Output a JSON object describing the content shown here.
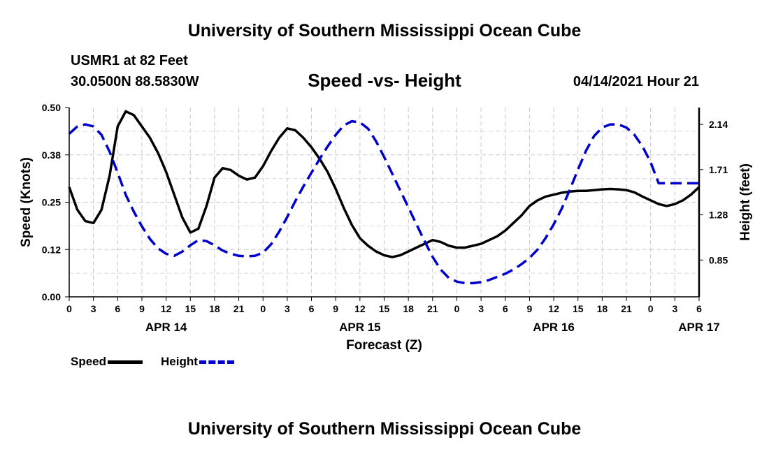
{
  "header": {
    "title": "University of Southern Mississippi Ocean Cube",
    "station": "USMR1 at 82 Feet",
    "coords": "30.0500N  88.5830W",
    "subtitle": "Speed -vs- Height",
    "datestamp": "04/14/2021 Hour 21"
  },
  "footer": {
    "title": "University of Southern Mississippi Ocean Cube"
  },
  "legend": {
    "speed_label": "Speed",
    "height_label": "Height"
  },
  "chart_data": {
    "type": "line",
    "title": "Speed -vs- Height",
    "xlabel": "Forecast (Z)",
    "ylabel": "Speed (Knots)",
    "ylabel_right": "Height (feet)",
    "x_unit": "hours from 04/14/2021 00Z",
    "xlim": [
      0,
      78
    ],
    "ylim": [
      0,
      0.5
    ],
    "ylim_right": [
      0.5,
      2.3
    ],
    "grid": true,
    "legend_position": "bottom-left",
    "x_ticks": [
      {
        "hour": 0,
        "label": "0"
      },
      {
        "hour": 3,
        "label": "3"
      },
      {
        "hour": 6,
        "label": "6"
      },
      {
        "hour": 9,
        "label": "9"
      },
      {
        "hour": 12,
        "label": "12"
      },
      {
        "hour": 15,
        "label": "15"
      },
      {
        "hour": 18,
        "label": "18"
      },
      {
        "hour": 21,
        "label": "21"
      },
      {
        "hour": 24,
        "label": "0"
      },
      {
        "hour": 27,
        "label": "3"
      },
      {
        "hour": 30,
        "label": "6"
      },
      {
        "hour": 33,
        "label": "9"
      },
      {
        "hour": 36,
        "label": "12"
      },
      {
        "hour": 39,
        "label": "15"
      },
      {
        "hour": 42,
        "label": "18"
      },
      {
        "hour": 45,
        "label": "21"
      },
      {
        "hour": 48,
        "label": "0"
      },
      {
        "hour": 51,
        "label": "3"
      },
      {
        "hour": 54,
        "label": "6"
      },
      {
        "hour": 57,
        "label": "9"
      },
      {
        "hour": 60,
        "label": "12"
      },
      {
        "hour": 63,
        "label": "15"
      },
      {
        "hour": 66,
        "label": "18"
      },
      {
        "hour": 69,
        "label": "21"
      },
      {
        "hour": 72,
        "label": "0"
      },
      {
        "hour": 75,
        "label": "3"
      },
      {
        "hour": 78,
        "label": "6"
      }
    ],
    "date_labels": [
      {
        "hour": 12,
        "label": "APR 14"
      },
      {
        "hour": 36,
        "label": "APR 15"
      },
      {
        "hour": 60,
        "label": "APR 16"
      },
      {
        "hour": 78,
        "label": "APR 17"
      }
    ],
    "y_ticks": [
      {
        "value": 0.0,
        "label": "0.00"
      },
      {
        "value": 0.125,
        "label": "0.12"
      },
      {
        "value": 0.25,
        "label": "0.25"
      },
      {
        "value": 0.375,
        "label": "0.38"
      },
      {
        "value": 0.5,
        "label": "0.50"
      }
    ],
    "y_ticks_right": [
      {
        "value": 0.85,
        "label": "0.85"
      },
      {
        "value": 1.28,
        "label": "1.28"
      },
      {
        "value": 1.71,
        "label": "1.71"
      },
      {
        "value": 2.14,
        "label": "2.14"
      }
    ],
    "series": [
      {
        "name": "Speed",
        "axis": "left",
        "color": "#000000",
        "dash": "solid",
        "x": [
          0,
          1,
          2,
          3,
          4,
          5,
          6,
          7,
          8,
          9,
          10,
          11,
          12,
          13,
          14,
          15,
          16,
          17,
          18,
          19,
          20,
          21,
          22,
          23,
          24,
          25,
          26,
          27,
          28,
          29,
          30,
          31,
          32,
          33,
          34,
          35,
          36,
          37,
          38,
          39,
          40,
          41,
          42,
          43,
          44,
          45,
          46,
          47,
          48,
          49,
          50,
          51,
          52,
          53,
          54,
          55,
          56,
          57,
          58,
          59,
          60,
          61,
          62,
          63,
          64,
          65,
          66,
          67,
          68,
          69,
          70,
          71,
          72,
          73,
          74,
          75,
          76,
          77,
          78
        ],
        "values": [
          0.29,
          0.23,
          0.2,
          0.195,
          0.23,
          0.32,
          0.45,
          0.49,
          0.48,
          0.45,
          0.42,
          0.38,
          0.33,
          0.27,
          0.21,
          0.17,
          0.18,
          0.24,
          0.315,
          0.34,
          0.335,
          0.32,
          0.31,
          0.315,
          0.345,
          0.385,
          0.42,
          0.445,
          0.44,
          0.42,
          0.395,
          0.365,
          0.33,
          0.285,
          0.235,
          0.19,
          0.155,
          0.135,
          0.12,
          0.11,
          0.105,
          0.11,
          0.12,
          0.13,
          0.14,
          0.15,
          0.145,
          0.135,
          0.13,
          0.13,
          0.135,
          0.14,
          0.15,
          0.16,
          0.175,
          0.195,
          0.215,
          0.24,
          0.255,
          0.265,
          0.27,
          0.275,
          0.278,
          0.28,
          0.28,
          0.282,
          0.284,
          0.285,
          0.284,
          0.282,
          0.276,
          0.265,
          0.255,
          0.245,
          0.24,
          0.245,
          0.255,
          0.27,
          0.29
        ]
      },
      {
        "name": "Height",
        "axis": "right",
        "color": "#0000cc",
        "dash": "dashed",
        "x": [
          0,
          1,
          2,
          3,
          4,
          5,
          6,
          7,
          8,
          9,
          10,
          11,
          12,
          13,
          14,
          15,
          16,
          17,
          18,
          19,
          20,
          21,
          22,
          23,
          24,
          25,
          26,
          27,
          28,
          29,
          30,
          31,
          32,
          33,
          34,
          35,
          36,
          37,
          38,
          39,
          40,
          41,
          42,
          43,
          44,
          45,
          46,
          47,
          48,
          49,
          50,
          51,
          52,
          53,
          54,
          55,
          56,
          57,
          58,
          59,
          60,
          61,
          62,
          63,
          64,
          65,
          66,
          67,
          68,
          69,
          70,
          71,
          72,
          73,
          74,
          75,
          76,
          77,
          78
        ],
        "values": [
          2.05,
          2.12,
          2.14,
          2.12,
          2.04,
          1.88,
          1.68,
          1.47,
          1.31,
          1.17,
          1.05,
          0.96,
          0.91,
          0.89,
          0.93,
          0.99,
          1.04,
          1.03,
          0.99,
          0.94,
          0.91,
          0.89,
          0.885,
          0.89,
          0.92,
          1.0,
          1.12,
          1.26,
          1.41,
          1.55,
          1.68,
          1.81,
          1.93,
          2.04,
          2.13,
          2.17,
          2.16,
          2.1,
          1.98,
          1.83,
          1.67,
          1.51,
          1.35,
          1.19,
          1.03,
          0.88,
          0.76,
          0.68,
          0.645,
          0.63,
          0.63,
          0.64,
          0.66,
          0.69,
          0.72,
          0.76,
          0.81,
          0.87,
          0.95,
          1.06,
          1.19,
          1.34,
          1.52,
          1.71,
          1.89,
          2.03,
          2.11,
          2.14,
          2.14,
          2.11,
          2.04,
          1.93,
          1.78,
          1.58,
          1.58,
          1.58,
          1.58,
          1.58,
          1.58
        ]
      }
    ]
  }
}
